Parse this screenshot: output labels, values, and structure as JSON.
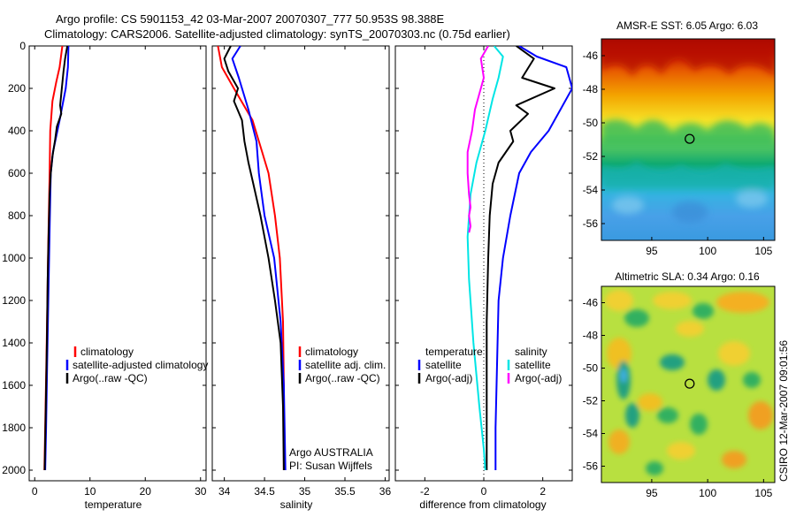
{
  "figure": {
    "title_line1": "Argo profile: CS 5901153_42 03-Mar-2007 20070307_777 50.953S 98.388E",
    "title_line2": "Climatology: CARS2006. Satellite-adjusted climatology: synTS_20070303.nc (0.75d earlier)",
    "footer_vertical": "CSIRO 12-Mar-2007 09:01:56",
    "colors": {
      "climatology": "#ff0000",
      "satellite": "#0000ff",
      "argo": "#000000",
      "sat_salinity": "#00e5e5",
      "argo_adj_salinity": "#ff00ff"
    }
  },
  "chart_data": [
    {
      "type": "line",
      "panel": "temperature",
      "xlabel": "temperature",
      "ylabel": "",
      "xlim": [
        -1,
        31
      ],
      "ylim": [
        2050,
        0
      ],
      "x_ticks": [
        0,
        10,
        20,
        30
      ],
      "y_ticks": [
        0,
        200,
        400,
        600,
        800,
        1000,
        1200,
        1400,
        1600,
        1800,
        2000
      ],
      "legend_placement": "lower-right",
      "legend": [
        "climatology",
        "satellite-adjusted climatology",
        "Argo(..raw -QC)"
      ],
      "series": [
        {
          "name": "climatology",
          "color": "#ff0000",
          "x": [
            5.0,
            4.5,
            3.9,
            3.2,
            2.8,
            2.7,
            2.55,
            2.4,
            2.3,
            2.1,
            1.9,
            1.75
          ],
          "y": [
            0,
            100,
            170,
            260,
            400,
            600,
            800,
            1000,
            1200,
            1500,
            1800,
            2000
          ]
        },
        {
          "name": "satellite-adjusted climatology",
          "color": "#0000ff",
          "x": [
            6.1,
            6.0,
            5.6,
            4.5,
            3.3,
            2.9,
            2.75,
            2.6,
            2.45,
            2.25,
            2.05,
            1.9
          ],
          "y": [
            0,
            100,
            200,
            350,
            500,
            600,
            800,
            1000,
            1200,
            1500,
            1800,
            2000
          ]
        },
        {
          "name": "Argo(..raw -QC)",
          "color": "#000000",
          "x": [
            5.9,
            5.5,
            5.2,
            4.9,
            4.6,
            4.8,
            4.0,
            3.7,
            3.2,
            2.9,
            2.7,
            2.5,
            2.35,
            2.2,
            2.0,
            1.8
          ],
          "y": [
            0,
            60,
            120,
            200,
            280,
            320,
            380,
            440,
            520,
            600,
            700,
            900,
            1100,
            1400,
            1700,
            2000
          ]
        }
      ]
    },
    {
      "type": "line",
      "panel": "salinity",
      "xlabel": "salinity",
      "ylabel": "",
      "xlim": [
        33.85,
        36.05
      ],
      "ylim": [
        2050,
        0
      ],
      "x_ticks": [
        34,
        34.5,
        35,
        35.5,
        36
      ],
      "legend_placement": "lower-right",
      "legend": [
        "climatology",
        "satellite adj. clim.",
        "Argo(..raw -QC)"
      ],
      "annotations": [
        "Argo AUSTRALIA",
        "PI: Susan Wijffels"
      ],
      "series": [
        {
          "name": "climatology",
          "color": "#ff0000",
          "x": [
            33.92,
            33.97,
            34.12,
            34.35,
            34.47,
            34.55,
            34.63,
            34.69,
            34.73,
            34.74,
            34.74
          ],
          "y": [
            0,
            100,
            200,
            350,
            500,
            600,
            800,
            1000,
            1300,
            1600,
            2000
          ]
        },
        {
          "name": "satellite adj. clim.",
          "color": "#0000ff",
          "x": [
            34.2,
            34.1,
            34.18,
            34.3,
            34.4,
            34.43,
            34.5,
            34.62,
            34.7,
            34.74,
            34.76
          ],
          "y": [
            0,
            60,
            150,
            300,
            450,
            600,
            800,
            1000,
            1300,
            1600,
            2000
          ]
        },
        {
          "name": "Argo(..raw -QC)",
          "color": "#000000",
          "x": [
            34.08,
            34.0,
            34.05,
            34.17,
            34.12,
            34.22,
            34.25,
            34.3,
            34.36,
            34.45,
            34.55,
            34.63,
            34.7,
            34.73,
            34.74
          ],
          "y": [
            0,
            60,
            120,
            200,
            260,
            350,
            450,
            550,
            650,
            800,
            1000,
            1200,
            1400,
            1700,
            2000
          ]
        }
      ]
    },
    {
      "type": "line",
      "panel": "difference",
      "xlabel": "difference from climatology",
      "ylabel": "",
      "xlim": [
        -3.0,
        3.0
      ],
      "ylim": [
        2050,
        0
      ],
      "x_ticks": [
        -2,
        0,
        2
      ],
      "legend_placement": "lower-right",
      "legend_headers": [
        "temperature",
        "salinity"
      ],
      "legend": [
        "satellite",
        "Argo(-adj)",
        "satellite",
        "Argo(-adj)"
      ],
      "series": [
        {
          "name": "temperature satellite",
          "color": "#0000ff",
          "x": [
            1.2,
            1.8,
            2.8,
            3.0,
            2.2,
            1.6,
            1.2,
            0.9,
            0.65,
            0.5,
            0.45,
            0.4,
            0.4
          ],
          "y": [
            0,
            50,
            100,
            200,
            400,
            500,
            600,
            800,
            1000,
            1200,
            1500,
            1800,
            2000
          ]
        },
        {
          "name": "temperature Argo(-adj)",
          "color": "#000000",
          "x": [
            1.1,
            1.7,
            1.3,
            2.4,
            1.1,
            1.5,
            0.9,
            1.0,
            0.5,
            0.3,
            0.2,
            0.15,
            0.1,
            0.1,
            0.1
          ],
          "y": [
            0,
            60,
            150,
            200,
            280,
            320,
            400,
            450,
            550,
            650,
            800,
            1000,
            1300,
            1700,
            2000
          ]
        },
        {
          "name": "salinity satellite",
          "color": "#00e5e5",
          "x": [
            0.35,
            0.65,
            0.5,
            0.3,
            0.05,
            -0.25,
            -0.45,
            -0.55,
            -0.5,
            -0.35,
            -0.15,
            0.0,
            0.05
          ],
          "y": [
            0,
            50,
            150,
            250,
            400,
            550,
            700,
            900,
            1100,
            1400,
            1700,
            1900,
            2000
          ]
        },
        {
          "name": "salinity Argo(-adj)",
          "color": "#ff00ff",
          "x": [
            0.15,
            -0.1,
            0.0,
            -0.3,
            -0.4,
            -0.55,
            -0.55,
            -0.5,
            -0.45,
            -0.5,
            -0.45,
            -0.5
          ],
          "y": [
            0,
            60,
            150,
            300,
            400,
            500,
            600,
            700,
            760,
            800,
            850,
            880
          ]
        }
      ]
    },
    {
      "type": "heatmap",
      "panel": "sst_map",
      "title": "AMSR-E SST: 6.05 Argo: 6.03",
      "xlim": [
        90.5,
        106
      ],
      "ylim": [
        -57,
        -45
      ],
      "x_ticks": [
        95,
        100,
        105
      ],
      "y_ticks": [
        -46,
        -48,
        -50,
        -52,
        -54,
        -56
      ],
      "marker": {
        "lon": 98.388,
        "lat": -50.953
      }
    },
    {
      "type": "heatmap",
      "panel": "sla_map",
      "title": "Altimetric SLA: 0.34 Argo: 0.16",
      "xlim": [
        90.5,
        106
      ],
      "ylim": [
        -57,
        -45
      ],
      "x_ticks": [
        95,
        100,
        105
      ],
      "y_ticks": [
        -46,
        -48,
        -50,
        -52,
        -54,
        -56
      ],
      "marker": {
        "lon": 98.388,
        "lat": -50.953
      }
    }
  ]
}
